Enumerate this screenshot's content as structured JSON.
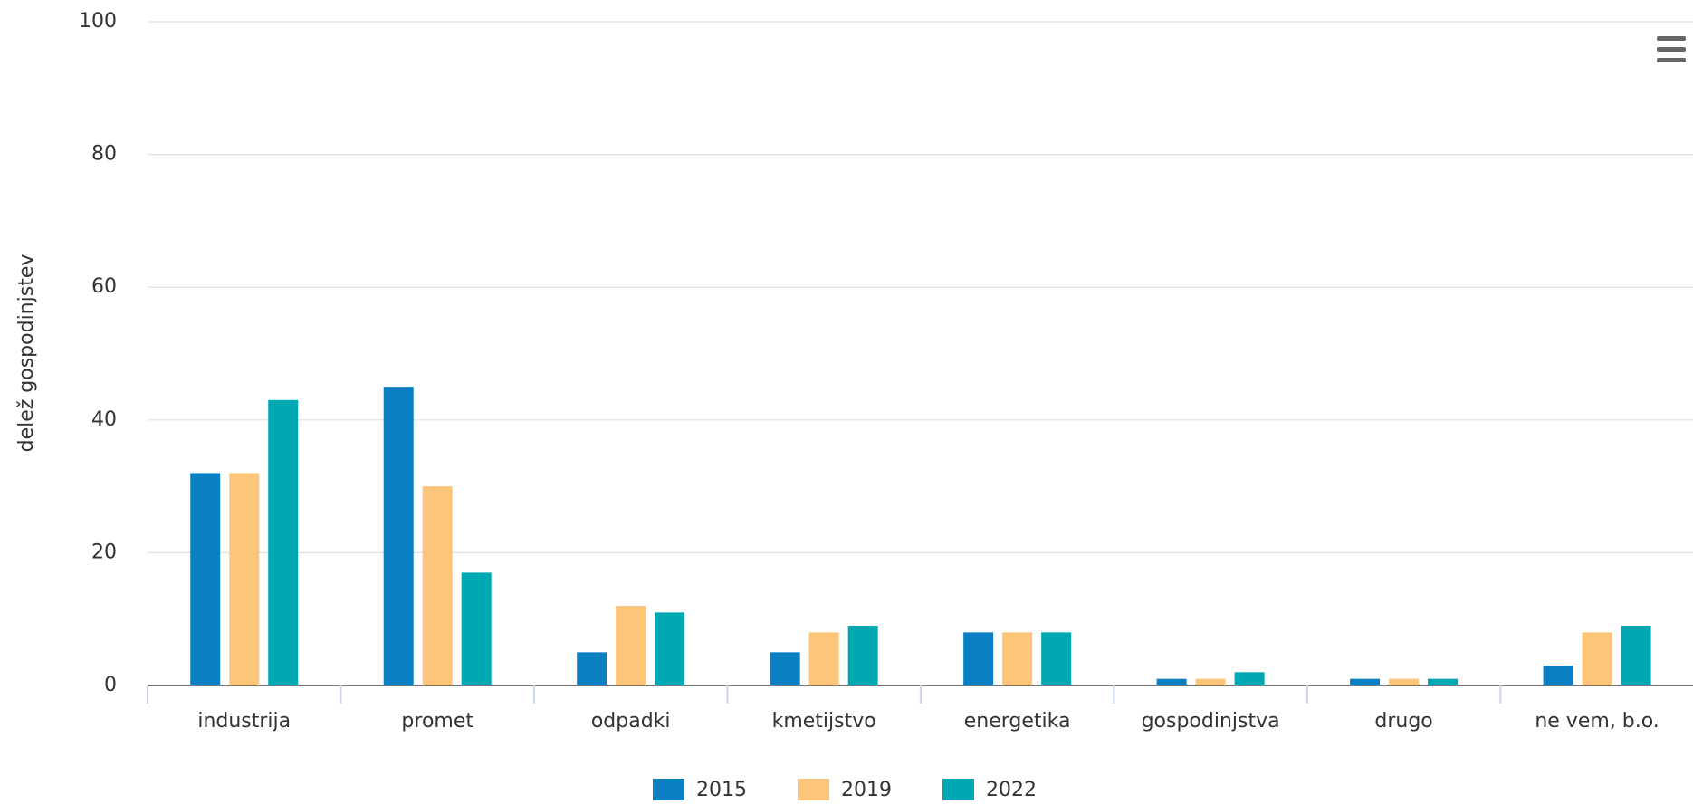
{
  "chart_data": {
    "type": "bar",
    "y_label": "delež gospodinjstev",
    "categories": [
      "industrija",
      "promet",
      "odpadki",
      "kmetijstvo",
      "energetika",
      "gospodinjstva",
      "drugo",
      "ne vem, b.o."
    ],
    "series": [
      {
        "name": "2015",
        "color": "#0a7fc1",
        "values": [
          32,
          45,
          5,
          5,
          8,
          1,
          1,
          3
        ]
      },
      {
        "name": "2019",
        "color": "#fdc57a",
        "values": [
          32,
          30,
          12,
          8,
          8,
          1,
          1,
          8
        ]
      },
      {
        "name": "2022",
        "color": "#00a9b1",
        "values": [
          43,
          17,
          11,
          9,
          8,
          2,
          1,
          9
        ]
      }
    ],
    "ylim": [
      0,
      100
    ],
    "yticks": [
      0,
      20,
      40,
      60,
      80,
      100
    ],
    "grid": true,
    "legend": "bottom"
  }
}
